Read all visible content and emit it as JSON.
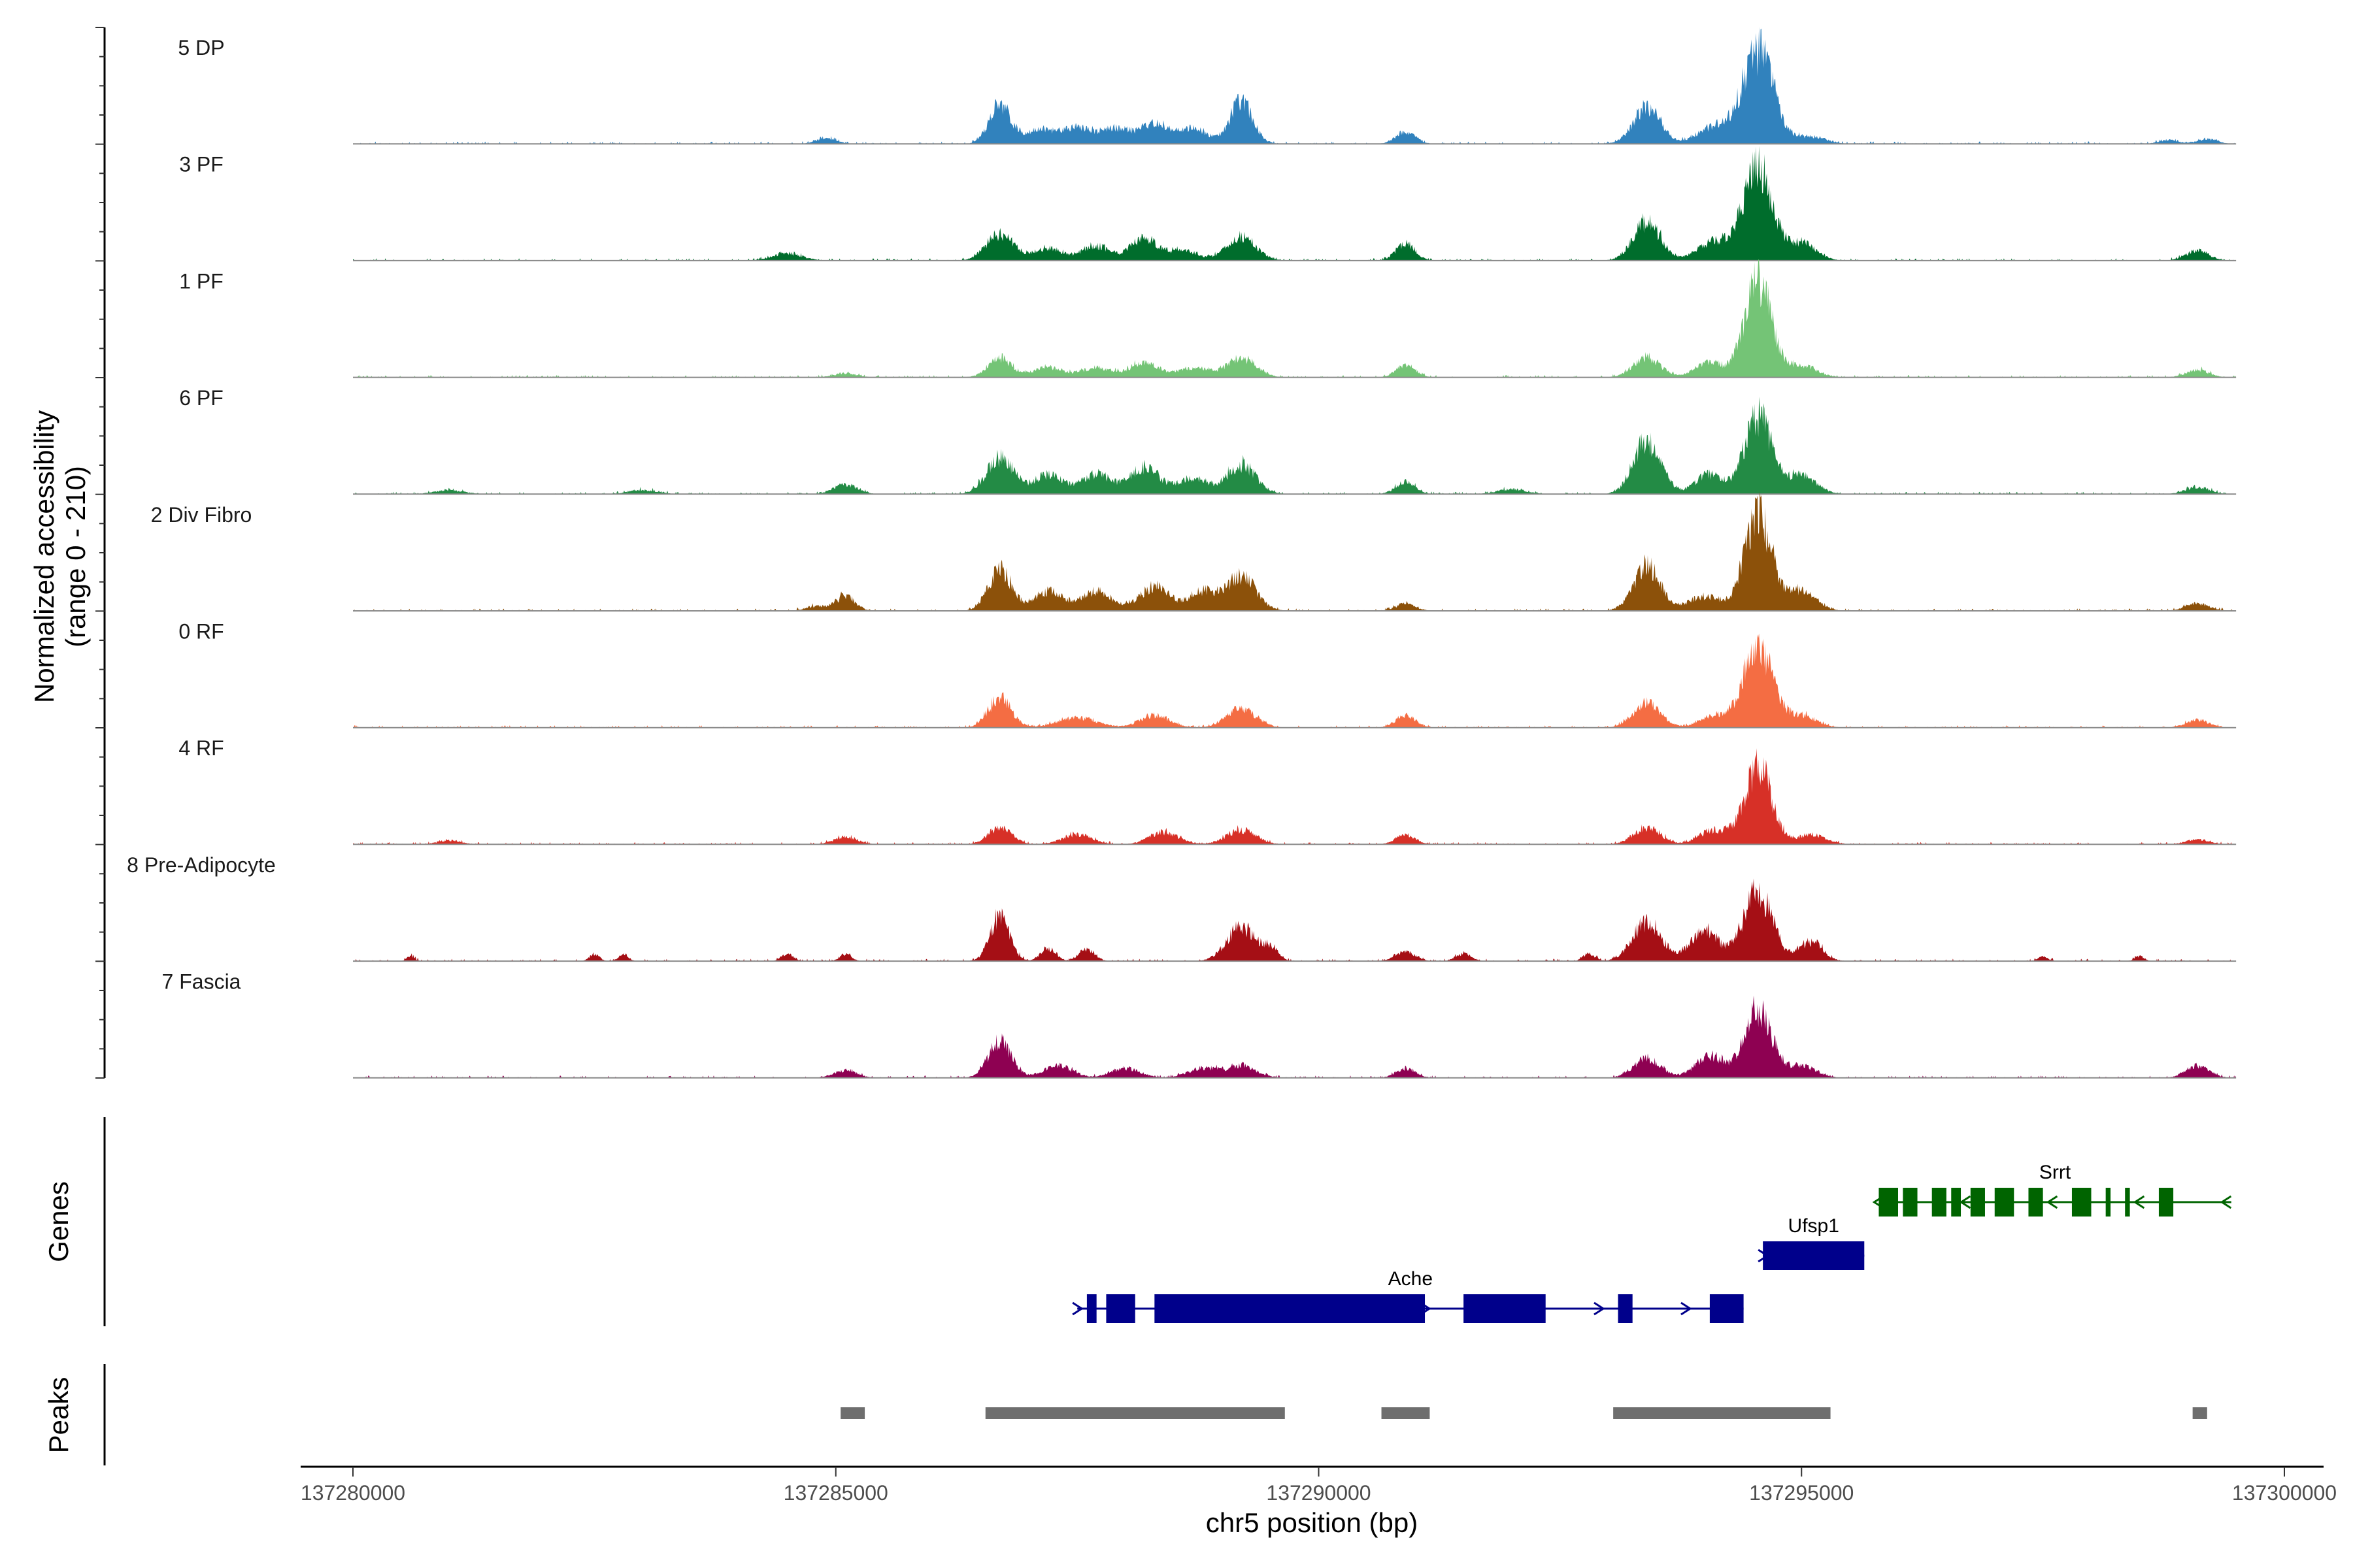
{
  "chart_data": {
    "type": "area",
    "title": "",
    "xlabel": "chr5 position (bp)",
    "ylabel": "Normalized accessibility",
    "ylabel_range": "(range 0 - 210)",
    "ylim": [
      0,
      210
    ],
    "xlim": [
      137279200,
      137300700
    ],
    "x_ticks": [
      137280000,
      137285000,
      137290000,
      137295000,
      137300000
    ],
    "x_tick_labels": [
      "137280000",
      "137285000",
      "137290000",
      "137295000",
      "137300000"
    ],
    "signal_start": 137280000,
    "signal_end": 137299500,
    "tracks": [
      {
        "name": "5 DP",
        "color": "#3182bd",
        "peaks": [
          [
            137284900,
            12,
            100
          ],
          [
            137286700,
            80,
            110
          ],
          [
            137287100,
            30,
            150
          ],
          [
            137287500,
            35,
            150
          ],
          [
            137287900,
            30,
            150
          ],
          [
            137288300,
            40,
            150
          ],
          [
            137288700,
            30,
            150
          ],
          [
            137289200,
            85,
            120
          ],
          [
            137290900,
            25,
            100
          ],
          [
            137293400,
            75,
            140
          ],
          [
            137294100,
            35,
            170
          ],
          [
            137294550,
            190,
            160
          ],
          [
            137295100,
            15,
            150
          ],
          [
            137298800,
            8,
            100
          ],
          [
            137299200,
            10,
            100
          ]
        ]
      },
      {
        "name": "3 PF",
        "color": "#006d2c",
        "peaks": [
          [
            137284500,
            15,
            150
          ],
          [
            137286700,
            55,
            140
          ],
          [
            137287200,
            25,
            150
          ],
          [
            137287700,
            30,
            150
          ],
          [
            137288200,
            45,
            140
          ],
          [
            137288600,
            20,
            150
          ],
          [
            137289200,
            50,
            150
          ],
          [
            137290900,
            35,
            100
          ],
          [
            137293400,
            80,
            140
          ],
          [
            137294100,
            40,
            170
          ],
          [
            137294550,
            190,
            150
          ],
          [
            137295000,
            35,
            150
          ],
          [
            137299100,
            20,
            120
          ]
        ]
      },
      {
        "name": "1 PF",
        "color": "#74c476",
        "peaks": [
          [
            137285100,
            8,
            120
          ],
          [
            137286700,
            40,
            120
          ],
          [
            137287200,
            20,
            150
          ],
          [
            137287700,
            20,
            150
          ],
          [
            137288200,
            30,
            150
          ],
          [
            137288700,
            20,
            150
          ],
          [
            137289200,
            40,
            150
          ],
          [
            137290900,
            25,
            100
          ],
          [
            137293400,
            40,
            140
          ],
          [
            137294050,
            30,
            150
          ],
          [
            137294550,
            200,
            140
          ],
          [
            137295000,
            25,
            150
          ],
          [
            137299100,
            15,
            120
          ]
        ]
      },
      {
        "name": "6 PF",
        "color": "#238b45",
        "peaks": [
          [
            137281000,
            8,
            150
          ],
          [
            137283000,
            8,
            150
          ],
          [
            137285100,
            20,
            120
          ],
          [
            137286700,
            75,
            140
          ],
          [
            137287200,
            40,
            150
          ],
          [
            137287700,
            40,
            160
          ],
          [
            137288200,
            55,
            150
          ],
          [
            137288700,
            35,
            150
          ],
          [
            137289200,
            60,
            150
          ],
          [
            137290900,
            25,
            100
          ],
          [
            137292000,
            10,
            150
          ],
          [
            137293400,
            110,
            140
          ],
          [
            137294050,
            40,
            150
          ],
          [
            137294550,
            160,
            140
          ],
          [
            137295000,
            40,
            150
          ],
          [
            137299100,
            15,
            120
          ]
        ]
      },
      {
        "name": "2 Div Fibro",
        "color": "#8c510a",
        "peaks": [
          [
            137284800,
            10,
            100
          ],
          [
            137285100,
            30,
            100
          ],
          [
            137286700,
            85,
            120
          ],
          [
            137287200,
            40,
            150
          ],
          [
            137287700,
            40,
            160
          ],
          [
            137288300,
            50,
            150
          ],
          [
            137288800,
            40,
            150
          ],
          [
            137289200,
            70,
            150
          ],
          [
            137290900,
            15,
            100
          ],
          [
            137293400,
            90,
            140
          ],
          [
            137294000,
            30,
            170
          ],
          [
            137294550,
            200,
            140
          ],
          [
            137295000,
            40,
            150
          ],
          [
            137299100,
            15,
            120
          ]
        ]
      },
      {
        "name": "0 RF",
        "color": "#f46d43",
        "peaks": [
          [
            137286700,
            60,
            120
          ],
          [
            137287500,
            20,
            200
          ],
          [
            137288300,
            25,
            150
          ],
          [
            137289200,
            40,
            150
          ],
          [
            137290900,
            25,
            100
          ],
          [
            137293400,
            50,
            140
          ],
          [
            137294100,
            25,
            150
          ],
          [
            137294550,
            170,
            150
          ],
          [
            137295000,
            25,
            150
          ],
          [
            137299100,
            15,
            120
          ]
        ]
      },
      {
        "name": "4 RF",
        "color": "#d73027",
        "peaks": [
          [
            137281000,
            8,
            120
          ],
          [
            137285100,
            15,
            120
          ],
          [
            137286700,
            35,
            120
          ],
          [
            137287500,
            20,
            150
          ],
          [
            137288400,
            25,
            150
          ],
          [
            137289200,
            30,
            150
          ],
          [
            137290900,
            20,
            100
          ],
          [
            137293400,
            35,
            140
          ],
          [
            137294100,
            30,
            150
          ],
          [
            137294550,
            160,
            140
          ],
          [
            137295100,
            20,
            150
          ],
          [
            137299100,
            10,
            120
          ]
        ]
      },
      {
        "name": "8 Pre-Adipocyte",
        "color": "#a50f15",
        "peaks": [
          [
            137280600,
            10,
            40
          ],
          [
            137282500,
            15,
            50
          ],
          [
            137282800,
            15,
            50
          ],
          [
            137284500,
            15,
            60
          ],
          [
            137285100,
            15,
            60
          ],
          [
            137286700,
            90,
            100
          ],
          [
            137287200,
            25,
            80
          ],
          [
            137287600,
            25,
            80
          ],
          [
            137289200,
            70,
            150
          ],
          [
            137289500,
            25,
            80
          ],
          [
            137290900,
            20,
            100
          ],
          [
            137291500,
            15,
            80
          ],
          [
            137292800,
            15,
            60
          ],
          [
            137293400,
            80,
            150
          ],
          [
            137294000,
            60,
            150
          ],
          [
            137294550,
            140,
            150
          ],
          [
            137295100,
            40,
            120
          ],
          [
            137297500,
            10,
            50
          ],
          [
            137298500,
            10,
            50
          ]
        ]
      },
      {
        "name": "7 Fascia",
        "color": "#8e0152",
        "peaks": [
          [
            137285100,
            15,
            120
          ],
          [
            137286700,
            75,
            120
          ],
          [
            137287300,
            25,
            150
          ],
          [
            137288000,
            20,
            150
          ],
          [
            137288800,
            20,
            150
          ],
          [
            137289200,
            25,
            150
          ],
          [
            137290900,
            20,
            100
          ],
          [
            137293400,
            40,
            140
          ],
          [
            137294050,
            45,
            150
          ],
          [
            137294550,
            140,
            140
          ],
          [
            137295000,
            25,
            150
          ],
          [
            137299100,
            25,
            120
          ]
        ]
      }
    ],
    "genes": [
      {
        "name": "Srrt",
        "strand": "-",
        "color": "#006400",
        "start": 137295800,
        "end": 137299450,
        "exons": [
          [
            137295800,
            137296000
          ],
          [
            137296050,
            137296200
          ],
          [
            137296350,
            137296500
          ],
          [
            137296550,
            137296650
          ],
          [
            137296750,
            137296900
          ],
          [
            137297000,
            137297200
          ],
          [
            137297350,
            137297500
          ],
          [
            137297800,
            137298000
          ],
          [
            137298150,
            137298200
          ],
          [
            137298350,
            137298400
          ],
          [
            137298700,
            137298850
          ]
        ]
      },
      {
        "name": "Ufsp1",
        "strand": "+",
        "color": "#00008b",
        "start": 137294600,
        "end": 137295650,
        "exons": [
          [
            137294600,
            137295650
          ]
        ]
      },
      {
        "name": "Ache",
        "strand": "+",
        "color": "#00008b",
        "start": 137287500,
        "end": 137294400,
        "exons": [
          [
            137287600,
            137287700
          ],
          [
            137287800,
            137288100
          ],
          [
            137288300,
            137291100
          ],
          [
            137291500,
            137292350
          ],
          [
            137293100,
            137293250
          ],
          [
            137294050,
            137294400
          ]
        ]
      }
    ],
    "peak_regions": [
      [
        137285050,
        137285300
      ],
      [
        137286550,
        137289650
      ],
      [
        137290650,
        137291150
      ],
      [
        137293050,
        137295300
      ],
      [
        137299050,
        137299200
      ]
    ],
    "panel_titles": {
      "genes": "Genes",
      "peaks": "Peaks"
    }
  }
}
